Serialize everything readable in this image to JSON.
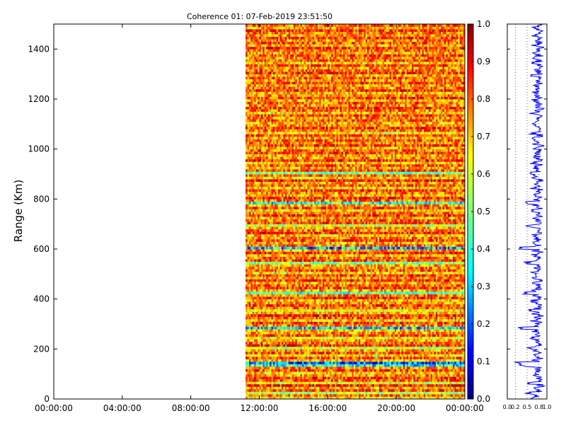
{
  "chart_data": [
    {
      "type": "heatmap",
      "title": "Coherence 01: 07-Feb-2019 23:51:50",
      "ylabel": "Range (Km)",
      "xlabel": "",
      "x_ticks": [
        "00:00:00",
        "04:00:00",
        "08:00:00",
        "12:00:00",
        "16:00:00",
        "20:00:00",
        "00:00:00"
      ],
      "x_range_hours": [
        0,
        24
      ],
      "data_start_hours": 11.2,
      "data_end_hours": 24.0,
      "y_ticks": [
        "0",
        "200",
        "400",
        "600",
        "800",
        "1000",
        "1200",
        "1400"
      ],
      "ylim": [
        0,
        1500
      ],
      "time_steps": 128,
      "colormap": "jet",
      "colorbar": {
        "range": [
          0.0,
          1.0
        ],
        "ticks": [
          "0.0",
          "0.1",
          "0.2",
          "0.3",
          "0.4",
          "0.5",
          "0.6",
          "0.7",
          "0.8",
          "0.9",
          "1.0"
        ]
      },
      "range_profile_mean": [
        0.65,
        0.75,
        0.55,
        0.8,
        0.7,
        0.85,
        0.6,
        0.78,
        0.82,
        0.72,
        0.68,
        0.8,
        0.75,
        0.4,
        0.25,
        0.7,
        0.8,
        0.65,
        0.78,
        0.72,
        0.58,
        0.82,
        0.76,
        0.7,
        0.62,
        0.8,
        0.72,
        0.68,
        0.35,
        0.75,
        0.8,
        0.66,
        0.78,
        0.84,
        0.7,
        0.62,
        0.76,
        0.8,
        0.72,
        0.68,
        0.82,
        0.74,
        0.45,
        0.7,
        0.8,
        0.76,
        0.68,
        0.82,
        0.72,
        0.8,
        0.66,
        0.78,
        0.74,
        0.7,
        0.5,
        0.8,
        0.76,
        0.68,
        0.82,
        0.72,
        0.3,
        0.76,
        0.7,
        0.8,
        0.74,
        0.68,
        0.82,
        0.76,
        0.72,
        0.58,
        0.8,
        0.78,
        0.7,
        0.84,
        0.74,
        0.66,
        0.8,
        0.72,
        0.42,
        0.76,
        0.82,
        0.7,
        0.74,
        0.8,
        0.68,
        0.78,
        0.72,
        0.84,
        0.66,
        0.76,
        0.5,
        0.8,
        0.72,
        0.78,
        0.66,
        0.82,
        0.74,
        0.7,
        0.8,
        0.76,
        0.68,
        0.82,
        0.74,
        0.78,
        0.7,
        0.8,
        0.64,
        0.76,
        0.82,
        0.72,
        0.7,
        0.78,
        0.74,
        0.8,
        0.66,
        0.76,
        0.82,
        0.72,
        0.78,
        0.7,
        0.8,
        0.74,
        0.68,
        0.82,
        0.76,
        0.72,
        0.8,
        0.74,
        0.78,
        0.7,
        0.82,
        0.76,
        0.72,
        0.8,
        0.66,
        0.78,
        0.74,
        0.8,
        0.72,
        0.76,
        0.82,
        0.7,
        0.78,
        0.74,
        0.8,
        0.72,
        0.76,
        0.82,
        0.7,
        0.78
      ]
    },
    {
      "type": "line",
      "title": "",
      "xlabel": "",
      "ylabel": "",
      "x_ticks": [
        "0.0",
        "0.2",
        "0.5",
        "0.8",
        "1.0"
      ],
      "xlim": [
        0,
        1
      ],
      "ylim": [
        0,
        1500
      ],
      "grid": "dotted-vertical",
      "color": "#0000ff"
    }
  ]
}
